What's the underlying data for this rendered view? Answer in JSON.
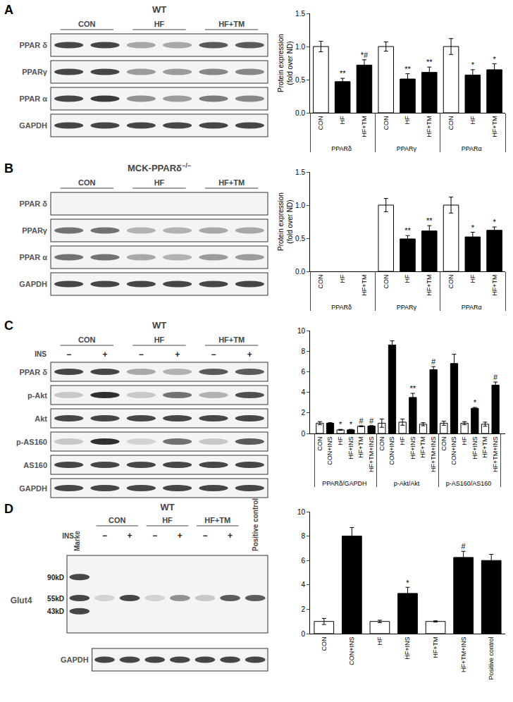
{
  "blots": [
    {
      "panel": "A",
      "title": "WT",
      "groups": [
        "CON",
        "HF",
        "HF+TM"
      ],
      "rows": [
        {
          "label": "PPAR δ",
          "bands": [
            0.8,
            0.8,
            0.35,
            0.35,
            0.7,
            0.7
          ]
        },
        {
          "label": "PPARγ",
          "bands": [
            0.8,
            0.8,
            0.4,
            0.4,
            0.5,
            0.5
          ]
        },
        {
          "label": "PPAR α",
          "bands": [
            0.8,
            0.85,
            0.45,
            0.4,
            0.55,
            0.5
          ]
        },
        {
          "label": "GAPDH",
          "bands": [
            0.8,
            0.8,
            0.8,
            0.8,
            0.8,
            0.8
          ]
        }
      ]
    },
    {
      "panel": "B",
      "title": "MCK-PPARδ",
      "title_sup": "−/−",
      "groups": [
        "CON",
        "HF",
        "HF+TM"
      ],
      "rows": [
        {
          "label": "PPAR δ",
          "bands": [
            0,
            0,
            0,
            0,
            0,
            0
          ]
        },
        {
          "label": "PPARγ",
          "bands": [
            0.6,
            0.6,
            0.3,
            0.3,
            0.35,
            0.35
          ]
        },
        {
          "label": "PPAR α",
          "bands": [
            0.6,
            0.6,
            0.35,
            0.3,
            0.4,
            0.4
          ]
        },
        {
          "label": "GAPDH",
          "bands": [
            0.8,
            0.8,
            0.8,
            0.8,
            0.8,
            0.8
          ]
        }
      ]
    },
    {
      "panel": "C",
      "title": "WT",
      "groups": [
        "CON",
        "HF",
        "HF+TM"
      ],
      "ins_label": "INS",
      "ins": [
        "−",
        "+",
        "−",
        "+",
        "−",
        "+"
      ],
      "rows": [
        {
          "label": "PPAR δ",
          "bands": [
            0.8,
            0.8,
            0.35,
            0.3,
            0.7,
            0.7
          ]
        },
        {
          "label": "p-Akt",
          "bands": [
            0.2,
            0.9,
            0.2,
            0.6,
            0.3,
            0.75
          ]
        },
        {
          "label": "Akt",
          "bands": [
            0.8,
            0.8,
            0.8,
            0.8,
            0.8,
            0.8
          ]
        },
        {
          "label": "p-AS160",
          "bands": [
            0.2,
            0.9,
            0.15,
            0.6,
            0.2,
            0.7
          ]
        },
        {
          "label": "AS160",
          "bands": [
            0.8,
            0.8,
            0.8,
            0.8,
            0.8,
            0.8
          ]
        },
        {
          "label": "GAPDH",
          "bands": [
            0.8,
            0.8,
            0.8,
            0.8,
            0.8,
            0.8
          ]
        }
      ]
    },
    {
      "panel": "D",
      "title": "WT",
      "groups": [
        "CON",
        "HF",
        "HF+TM"
      ],
      "ins_label": "INS",
      "ins": [
        "−",
        "+",
        "−",
        "+",
        "−",
        "+"
      ],
      "marker_label": "Marke",
      "marker_sizes": [
        "90kD",
        "55kD",
        "43kD"
      ],
      "extra_lane": "Positive control",
      "rows": [
        {
          "label": "Glut4",
          "bands": [
            0.15,
            0.8,
            0.15,
            0.45,
            0.2,
            0.7,
            0.7
          ]
        },
        {
          "label": "GAPDH",
          "bands": [
            0.8,
            0.8,
            0.8,
            0.8,
            0.8,
            0.8,
            0.8
          ]
        }
      ]
    }
  ],
  "chart_data": [
    {
      "type": "bar",
      "y_label": "Protein expression\n(fold over ND)",
      "groups": [
        "PPARδ",
        "PPARδ",
        "PPARδ",
        "PPARγ",
        "PPARγ",
        "PPARγ",
        "PPARα",
        "PPARα",
        "PPARα"
      ],
      "categories": [
        "CON",
        "HF",
        "HF+TM",
        "CON",
        "HF",
        "HF+TM",
        "CON",
        "HF",
        "HF+TM"
      ],
      "values": [
        1.0,
        0.47,
        0.72,
        1.0,
        0.51,
        0.61,
        1.0,
        0.57,
        0.65
      ],
      "errors": [
        0.08,
        0.05,
        0.08,
        0.07,
        0.08,
        0.08,
        0.12,
        0.08,
        0.09
      ],
      "marks": [
        null,
        "**",
        "*#",
        null,
        "**",
        "**",
        null,
        "*",
        "*"
      ],
      "colors": [
        "#ffffff",
        "#000000",
        "#000000",
        "#ffffff",
        "#000000",
        "#000000",
        "#ffffff",
        "#000000",
        "#000000"
      ],
      "ylim": [
        0,
        1.5
      ],
      "yticks": [
        {
          "value": 0,
          "label": "0.0"
        },
        {
          "value": 0.5,
          "label": "0.5"
        },
        {
          "value": 1,
          "label": "1.0"
        },
        {
          "value": 1.5,
          "label": "1.5"
        }
      ]
    },
    {
      "type": "bar",
      "y_label": "Protein expression\n(fold over ND)",
      "groups": [
        "PPARδ",
        "PPARδ",
        "PPARδ",
        "PPARγ",
        "PPARγ",
        "PPARγ",
        "PPARα",
        "PPARα",
        "PPARα"
      ],
      "categories": [
        "CON",
        "HF",
        "HF+TM",
        "CON",
        "HF",
        "HF+TM",
        "CON",
        "HF",
        "HF+TM"
      ],
      "values": [
        null,
        null,
        null,
        1.0,
        0.49,
        0.61,
        1.0,
        0.52,
        0.62
      ],
      "errors": [
        null,
        null,
        null,
        0.1,
        0.05,
        0.08,
        0.12,
        0.07,
        0.05
      ],
      "marks": [
        null,
        null,
        null,
        null,
        "**",
        "**",
        null,
        "*",
        "*"
      ],
      "colors": [
        "#ffffff",
        "#000000",
        "#000000",
        "#ffffff",
        "#000000",
        "#000000",
        "#ffffff",
        "#000000",
        "#000000"
      ],
      "ylim": [
        0,
        1.5
      ],
      "yticks": [
        {
          "value": 0,
          "label": "0.0"
        },
        {
          "value": 0.5,
          "label": "0.5"
        },
        {
          "value": 1,
          "label": "1.0"
        },
        {
          "value": 1.5,
          "label": "1.5"
        }
      ]
    },
    {
      "type": "bar",
      "groups": [
        "PPARδ/GAPDH",
        "PPARδ/GAPDH",
        "PPARδ/GAPDH",
        "PPARδ/GAPDH",
        "PPARδ/GAPDH",
        "PPARδ/GAPDH",
        "p-Akt/Akt",
        "p-Akt/Akt",
        "p-Akt/Akt",
        "p-Akt/Akt",
        "p-Akt/Akt",
        "p-Akt/Akt",
        "p-AS160/AS160",
        "p-AS160/AS160",
        "p-AS160/AS160",
        "p-AS160/AS160",
        "p-AS160/AS160",
        "p-AS160/AS160"
      ],
      "categories": [
        "CON",
        "CON+INS",
        "HF",
        "HF+INS",
        "HF+TM",
        "HF+TM+INS",
        "CON",
        "CON+INS",
        "HF",
        "HF+INS",
        "HF+TM",
        "HF+TM+INS",
        "CON",
        "CON+INS",
        "HF",
        "HF+INS",
        "HF+TM",
        "HF+TM+INS"
      ],
      "values": [
        1.0,
        1.0,
        0.35,
        0.35,
        0.7,
        0.72,
        1.0,
        8.6,
        1.1,
        3.5,
        0.9,
        6.2,
        1.0,
        6.8,
        1.0,
        2.45,
        0.9,
        4.7
      ],
      "errors": [
        0.15,
        0.05,
        0.05,
        0.05,
        0.05,
        0.05,
        0.4,
        0.4,
        0.3,
        0.4,
        0.15,
        0.3,
        0.2,
        0.9,
        0.15,
        0.08,
        0.2,
        0.3
      ],
      "marks": [
        null,
        null,
        "*",
        "*",
        "#",
        "#",
        null,
        null,
        null,
        "**",
        null,
        "#",
        null,
        null,
        null,
        "*",
        null,
        "#"
      ],
      "colors": [
        "#ffffff",
        "#000000",
        "#ffffff",
        "#000000",
        "#ffffff",
        "#000000",
        "#ffffff",
        "#000000",
        "#ffffff",
        "#000000",
        "#ffffff",
        "#000000",
        "#ffffff",
        "#000000",
        "#ffffff",
        "#000000",
        "#ffffff",
        "#000000"
      ],
      "ylim": [
        0,
        10
      ],
      "yticks": [
        0,
        2,
        4,
        6,
        8,
        10
      ]
    },
    {
      "type": "bar",
      "categories": [
        "CON",
        "CON+INS",
        "HF",
        "HF+INS",
        "HF+TM",
        "HF+TM+INS",
        "Positive control"
      ],
      "values": [
        1.0,
        8.0,
        1.0,
        3.3,
        1.0,
        6.25,
        6.0
      ],
      "errors": [
        0.25,
        0.7,
        0.1,
        0.5,
        0.05,
        0.5,
        0.5
      ],
      "marks": [
        null,
        null,
        null,
        "*",
        null,
        "#",
        null
      ],
      "colors": [
        "#ffffff",
        "#000000",
        "#ffffff",
        "#000000",
        "#ffffff",
        "#000000",
        "#000000"
      ],
      "ylim": [
        0,
        10
      ],
      "yticks": [
        0,
        2,
        4,
        6,
        8,
        10
      ]
    }
  ]
}
